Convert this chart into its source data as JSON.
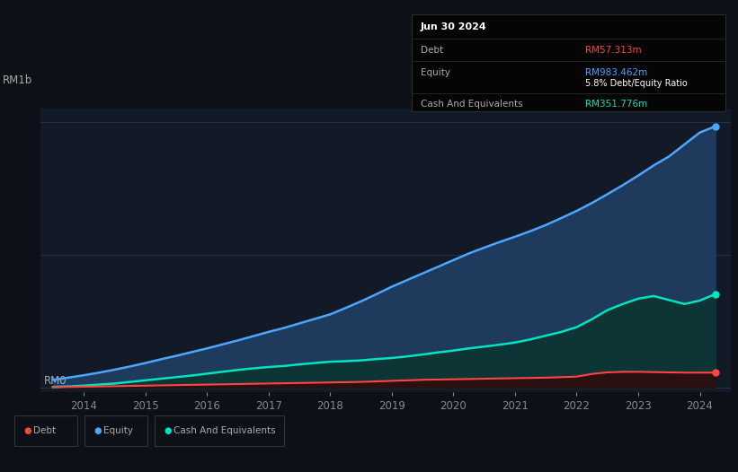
{
  "bg_color": "#0d1117",
  "plot_bg_color": "#131a27",
  "title_label": "RM1b",
  "x_labels": [
    "2014",
    "2015",
    "2016",
    "2017",
    "2018",
    "2019",
    "2020",
    "2021",
    "2022",
    "2023",
    "2024"
  ],
  "years": [
    2013.5,
    2013.75,
    2014.0,
    2014.25,
    2014.5,
    2014.75,
    2015.0,
    2015.25,
    2015.5,
    2015.75,
    2016.0,
    2016.25,
    2016.5,
    2016.75,
    2017.0,
    2017.25,
    2017.5,
    2017.75,
    2018.0,
    2018.25,
    2018.5,
    2018.75,
    2019.0,
    2019.25,
    2019.5,
    2019.75,
    2020.0,
    2020.25,
    2020.5,
    2020.75,
    2021.0,
    2021.25,
    2021.5,
    2021.75,
    2022.0,
    2022.25,
    2022.5,
    2022.75,
    2023.0,
    2023.25,
    2023.5,
    2023.75,
    2024.0,
    2024.25
  ],
  "equity": [
    0.03,
    0.038,
    0.047,
    0.057,
    0.068,
    0.08,
    0.093,
    0.107,
    0.12,
    0.134,
    0.148,
    0.163,
    0.178,
    0.194,
    0.21,
    0.225,
    0.242,
    0.259,
    0.276,
    0.3,
    0.325,
    0.352,
    0.38,
    0.405,
    0.43,
    0.455,
    0.48,
    0.505,
    0.527,
    0.548,
    0.568,
    0.589,
    0.612,
    0.638,
    0.665,
    0.695,
    0.728,
    0.762,
    0.798,
    0.836,
    0.87,
    0.915,
    0.96,
    0.983
  ],
  "cash": [
    0.003,
    0.005,
    0.008,
    0.012,
    0.016,
    0.022,
    0.028,
    0.034,
    0.04,
    0.046,
    0.053,
    0.06,
    0.067,
    0.073,
    0.078,
    0.082,
    0.088,
    0.093,
    0.098,
    0.1,
    0.103,
    0.108,
    0.112,
    0.118,
    0.125,
    0.133,
    0.14,
    0.148,
    0.155,
    0.162,
    0.17,
    0.182,
    0.196,
    0.21,
    0.228,
    0.258,
    0.292,
    0.315,
    0.335,
    0.345,
    0.33,
    0.315,
    0.328,
    0.352
  ],
  "debt": [
    0.002,
    0.003,
    0.004,
    0.005,
    0.006,
    0.007,
    0.008,
    0.009,
    0.01,
    0.011,
    0.012,
    0.013,
    0.014,
    0.015,
    0.016,
    0.017,
    0.018,
    0.019,
    0.02,
    0.021,
    0.022,
    0.024,
    0.026,
    0.028,
    0.03,
    0.031,
    0.032,
    0.033,
    0.034,
    0.035,
    0.036,
    0.037,
    0.038,
    0.04,
    0.042,
    0.052,
    0.058,
    0.06,
    0.06,
    0.059,
    0.058,
    0.057,
    0.057,
    0.057
  ],
  "equity_color": "#4da6ff",
  "cash_color": "#00e5c0",
  "debt_color": "#ff4444",
  "equity_fill": "#1e3a5c",
  "cash_fill": "#0d3535",
  "debt_fill": "#2a1010",
  "grid_color": "#2a3040",
  "tick_color": "#888888",
  "label_color": "#aaaaaa",
  "tooltip_bg": "#050505",
  "tooltip_border": "#2a2a2a",
  "tooltip_title": "Jun 30 2024",
  "tooltip_debt_label": "Debt",
  "tooltip_debt_value": "RM57.313m",
  "tooltip_equity_label": "Equity",
  "tooltip_equity_value": "RM983.462m",
  "tooltip_ratio": "5.8% Debt/Equity Ratio",
  "tooltip_cash_label": "Cash And Equivalents",
  "tooltip_cash_value": "RM351.776m",
  "rm0_label": "RM0",
  "legend_debt": "Debt",
  "legend_equity": "Equity",
  "legend_cash": "Cash And Equivalents"
}
